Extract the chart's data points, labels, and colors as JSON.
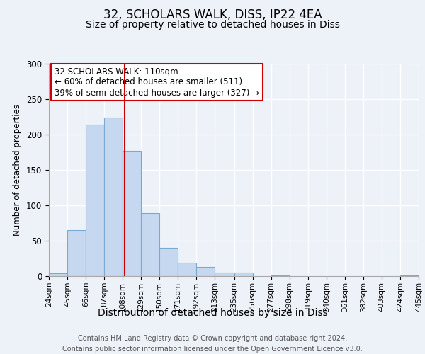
{
  "title": "32, SCHOLARS WALK, DISS, IP22 4EA",
  "subtitle": "Size of property relative to detached houses in Diss",
  "xlabel": "Distribution of detached houses by size in Diss",
  "ylabel": "Number of detached properties",
  "bar_edges": [
    24,
    45,
    66,
    87,
    108,
    129,
    150,
    171,
    192,
    213,
    235,
    256,
    277,
    298,
    319,
    340,
    361,
    382,
    403,
    424,
    445
  ],
  "bar_heights": [
    4,
    65,
    214,
    224,
    177,
    89,
    40,
    19,
    13,
    5,
    5,
    0,
    1,
    0,
    0,
    0,
    0,
    0,
    0,
    1
  ],
  "bar_color": "#c5d8f0",
  "bar_edge_color": "#7aaad4",
  "vline_x": 110,
  "vline_color": "#cc0000",
  "annotation_line1": "32 SCHOLARS WALK: 110sqm",
  "annotation_line2": "← 60% of detached houses are smaller (511)",
  "annotation_line3": "39% of semi-detached houses are larger (327) →",
  "ylim": [
    0,
    300
  ],
  "yticks": [
    0,
    50,
    100,
    150,
    200,
    250,
    300
  ],
  "bg_color": "#edf2f9",
  "plot_bg_color": "#edf2f9",
  "grid_color": "#ffffff",
  "footer_text": "Contains HM Land Registry data © Crown copyright and database right 2024.\nContains public sector information licensed under the Open Government Licence v3.0.",
  "title_fontsize": 12,
  "subtitle_fontsize": 10,
  "xlabel_fontsize": 10,
  "ylabel_fontsize": 8.5,
  "tick_label_fontsize": 7.5,
  "annotation_fontsize": 8.5,
  "footer_fontsize": 7
}
